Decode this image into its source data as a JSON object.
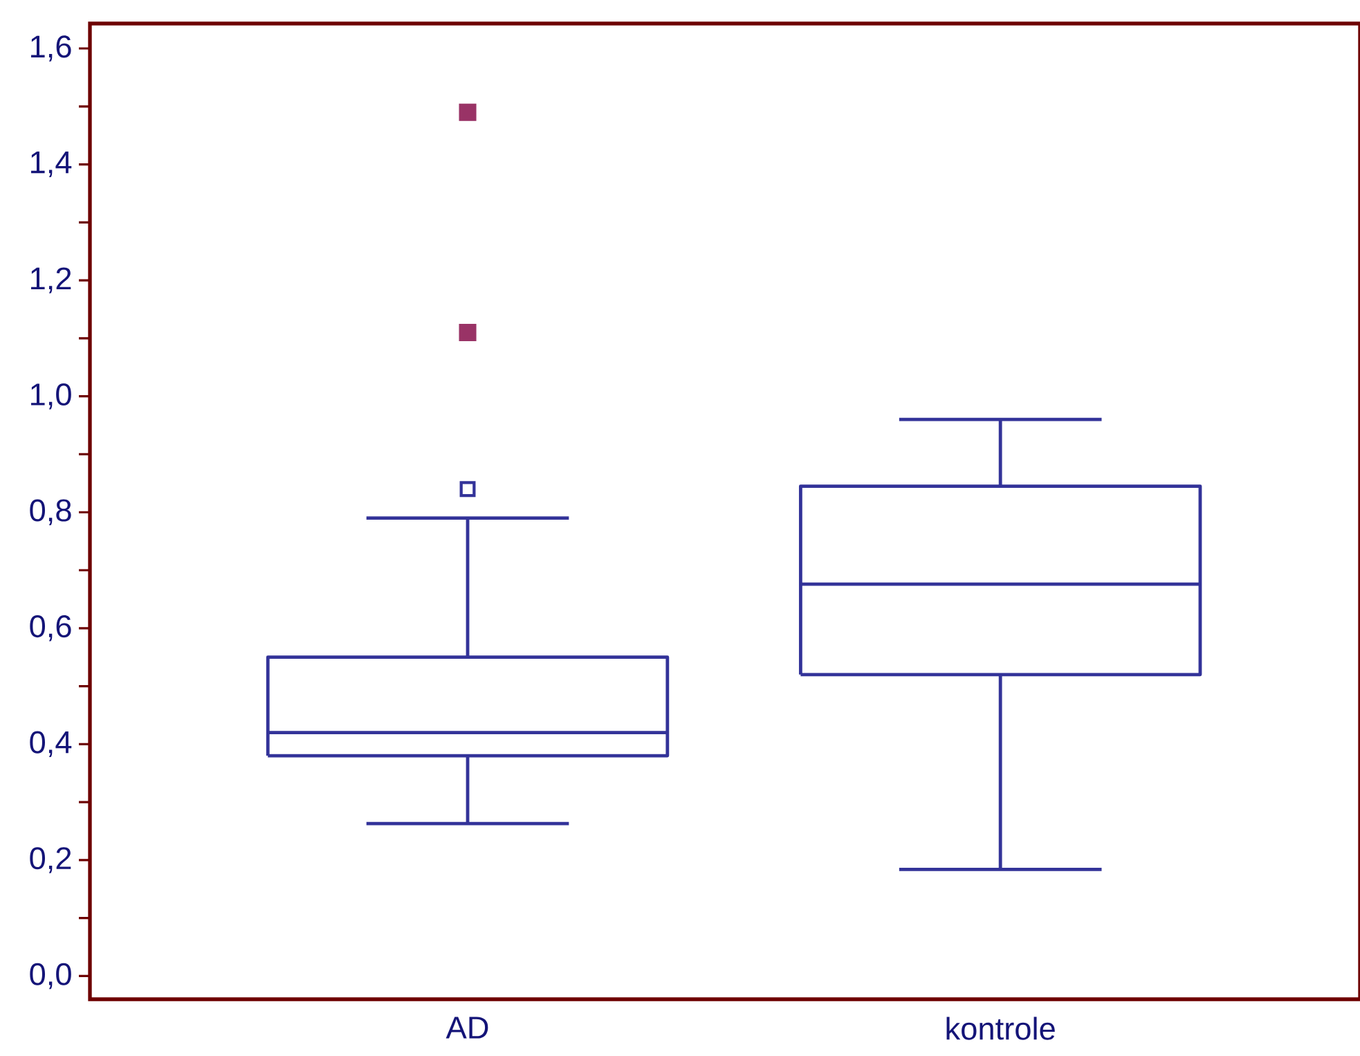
{
  "chart_data": {
    "type": "box",
    "categories": [
      "AD",
      "kontrole"
    ],
    "boxes": [
      {
        "low": 0.263,
        "q1": 0.38,
        "median": 0.42,
        "q3": 0.55,
        "high": 0.79,
        "outliers": [
          0.84
        ]
      },
      {
        "low": 0.184,
        "q1": 0.52,
        "median": 0.676,
        "q3": 0.845,
        "high": 0.96
      }
    ],
    "color": "#333399",
    "series": [
      {
        "type": "scatter",
        "x": [
          "AD",
          "AD"
        ],
        "values": [
          1.11,
          1.49
        ],
        "color": "#993366",
        "marker": "square"
      }
    ],
    "ylim": [
      -0.04,
      1.643
    ],
    "yticks": [
      {
        "value": 0,
        "label": "0,0"
      },
      {
        "value": 0.1,
        "label": null
      },
      {
        "value": 0.2,
        "label": "0,2"
      },
      {
        "value": 0.3,
        "label": null
      },
      {
        "value": 0.4,
        "label": "0,4"
      },
      {
        "value": 0.5,
        "label": null
      },
      {
        "value": 0.6,
        "label": "0,6"
      },
      {
        "value": 0.7,
        "label": null
      },
      {
        "value": 0.8,
        "label": "0,8"
      },
      {
        "value": 0.9,
        "label": null
      },
      {
        "value": 1.0,
        "label": "1,0"
      },
      {
        "value": 1.1,
        "label": null
      },
      {
        "value": 1.2,
        "label": "1,2"
      },
      {
        "value": 1.3,
        "label": null
      },
      {
        "value": 1.4,
        "label": "1,4"
      },
      {
        "value": 1.5,
        "label": null
      },
      {
        "value": 1.6,
        "label": "1,6"
      }
    ],
    "grid": false
  }
}
